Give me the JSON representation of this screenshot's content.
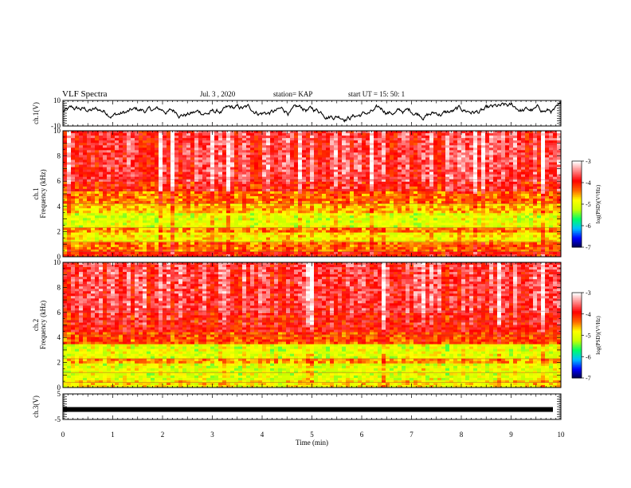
{
  "header": {
    "title": "VLF Spectra",
    "date": "Jul. 3 , 2020",
    "station": "station= KAP",
    "start": "start UT = 15: 50: 1"
  },
  "chart_data": [
    {
      "type": "line",
      "panel": "channel-1-waveform",
      "ylabel": "ch.1(V)",
      "ylim": [
        -10,
        10
      ],
      "yticks": [
        "10",
        "-10"
      ],
      "xlim": [
        0,
        10
      ],
      "description_values": "noisy signal, mostly between -6 and 8 V",
      "series": [
        {
          "color": "#000000"
        }
      ]
    },
    {
      "type": "heatmap",
      "panel": "channel-1-spectrogram",
      "ylabel": "ch.1\nFrequency (kHz)",
      "ylim": [
        0,
        10
      ],
      "yticks": [
        "0",
        "2",
        "4",
        "6",
        "8",
        "10"
      ],
      "xlim": [
        0,
        10
      ],
      "bands": [
        {
          "from": 0.0,
          "to": 0.4,
          "level": -4.0
        },
        {
          "from": 0.4,
          "to": 1.2,
          "level": -4.3
        },
        {
          "from": 1.2,
          "to": 2.0,
          "level": -4.8
        },
        {
          "from": 2.0,
          "to": 2.4,
          "level": -4.4
        },
        {
          "from": 2.4,
          "to": 3.5,
          "level": -5.0
        },
        {
          "from": 3.5,
          "to": 4.3,
          "level": -4.6
        },
        {
          "from": 4.3,
          "to": 5.2,
          "level": -4.3
        },
        {
          "from": 5.2,
          "to": 6.0,
          "level": -3.9
        },
        {
          "from": 6.0,
          "to": 10.0,
          "level": -3.7
        }
      ],
      "colorbar": {
        "label": "log(PSD)(V²/Hz)",
        "min": -7,
        "max": -3,
        "ticks": [
          "-3",
          "-4",
          "-5",
          "-6",
          "-7"
        ]
      }
    },
    {
      "type": "heatmap",
      "panel": "channel-2-spectrogram",
      "ylabel": "ch.2\nFrequency (kHz)",
      "ylim": [
        0,
        10
      ],
      "yticks": [
        "0",
        "2",
        "4",
        "6",
        "8",
        "10"
      ],
      "xlim": [
        0,
        10
      ],
      "bands": [
        {
          "from": 0.0,
          "to": 0.5,
          "level": -4.8
        },
        {
          "from": 0.5,
          "to": 2.0,
          "level": -5.0
        },
        {
          "from": 2.0,
          "to": 2.4,
          "level": -4.5
        },
        {
          "from": 2.4,
          "to": 3.5,
          "level": -5.0
        },
        {
          "from": 3.5,
          "to": 4.4,
          "level": -4.2
        },
        {
          "from": 4.4,
          "to": 6.0,
          "level": -3.9
        },
        {
          "from": 6.0,
          "to": 10.0,
          "level": -3.7
        }
      ],
      "colorbar": {
        "label": "log(PSD)(V²/Hz)",
        "min": -7,
        "max": -3,
        "ticks": [
          "-3",
          "-4",
          "-5",
          "-6",
          "-7"
        ]
      }
    },
    {
      "type": "line",
      "panel": "channel-3-waveform",
      "ylabel": "ch.3(V)",
      "ylim": [
        -5,
        5
      ],
      "yticks": [
        "5",
        "-5"
      ],
      "xlim": [
        0,
        10
      ],
      "xlabel": "Time (min)",
      "xticks": [
        "0",
        "1",
        "2",
        "3",
        "4",
        "5",
        "6",
        "7",
        "8",
        "9",
        "10"
      ],
      "series": [
        {
          "level": -1.1,
          "color": "#000000"
        }
      ]
    }
  ],
  "colors": {
    "axis": "#000000",
    "colormap": [
      "#000040",
      "#0000ff",
      "#00bfff",
      "#00ff66",
      "#c8ff00",
      "#ffff00",
      "#ff6600",
      "#ff0000",
      "#ff8080",
      "#ffffff"
    ]
  }
}
